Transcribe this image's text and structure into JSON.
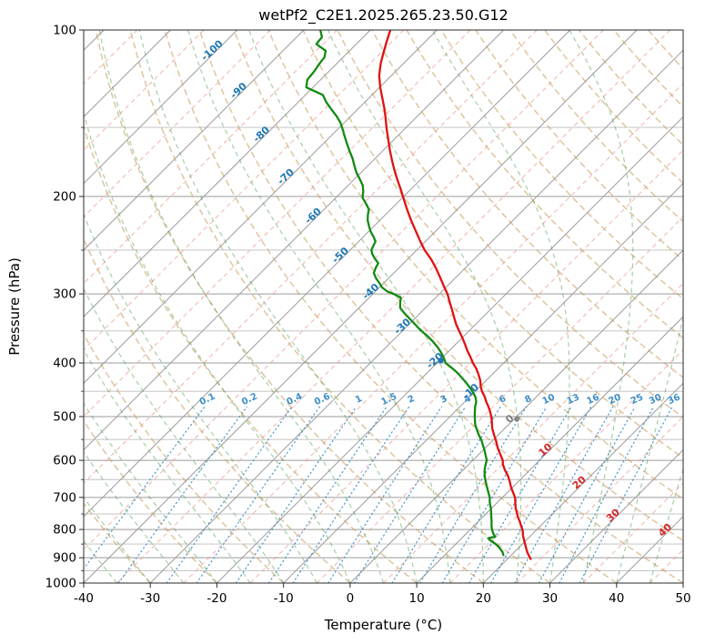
{
  "title": "wetPf2_C2E1.2025.265.23.50.G12",
  "axes": {
    "x_label": "Temperature (°C)",
    "y_label": "Pressure (hPa)",
    "x_ticks": [
      -40,
      -30,
      -20,
      -10,
      0,
      10,
      20,
      30,
      40,
      50
    ],
    "y_ticks": [
      100,
      200,
      300,
      400,
      500,
      600,
      700,
      800,
      900,
      1000
    ],
    "x_range": [
      -40,
      50
    ],
    "p_range": [
      100,
      1000
    ]
  },
  "chart_data": {
    "type": "line",
    "subtype": "skew_t_log_p",
    "title": "wetPf2_C2E1.2025.265.23.50.G12",
    "xlabel": "Temperature (°C)",
    "ylabel": "Pressure (hPa)",
    "skew_deg": 45,
    "grid": true,
    "colors": {
      "isotherm_major": "#9b9b9b",
      "isotherm_minor": "#ef9f96",
      "pressure_major": "#9b9b9b",
      "pressure_minor": "#bdbdbd",
      "dry_adiabat": "#c49a5a",
      "moist_adiabat": "#4e9e4e",
      "mixing_ratio": "#3c8ec8",
      "temperature": "#e11010",
      "dewpoint": "#128a12",
      "frame": "#2a2a2a",
      "label_negative": "#1f77b4",
      "label_zero": "#7f7f7f",
      "label_positive": "#d62728"
    },
    "isotherms_major": {
      "start": -120,
      "end": 50,
      "step": 10
    },
    "isotherms_minor": {
      "start": -115,
      "end": 45,
      "step": 10
    },
    "dry_adiabats": {
      "start": -40,
      "end": 190,
      "step": 10
    },
    "moist_adiabats": {
      "start": -40,
      "end": 45,
      "step": 5
    },
    "mixing_ratios": {
      "values": [
        0.1,
        0.2,
        0.4,
        0.6,
        1,
        1.5,
        2,
        3,
        4,
        6,
        8,
        10,
        13,
        16,
        20,
        25,
        30,
        36
      ],
      "label_pressure": 470,
      "top_pressure": 480
    },
    "isotherm_labels": [
      {
        "t": -100,
        "p": 110
      },
      {
        "t": -90,
        "p": 130
      },
      {
        "t": -80,
        "p": 156
      },
      {
        "t": -70,
        "p": 186
      },
      {
        "t": -60,
        "p": 219
      },
      {
        "t": -50,
        "p": 258
      },
      {
        "t": -40,
        "p": 300
      },
      {
        "t": -30,
        "p": 347
      },
      {
        "t": -20,
        "p": 400
      },
      {
        "t": -10,
        "p": 455
      },
      {
        "t": 0,
        "p": 510
      },
      {
        "t": 10,
        "p": 580
      },
      {
        "t": 20,
        "p": 665
      },
      {
        "t": 30,
        "p": 762
      },
      {
        "t": 40,
        "p": 810
      }
    ],
    "markers": [
      {
        "p": 396,
        "t": -19.8,
        "color": "#1f77b4",
        "r": 3.2
      },
      {
        "p": 505,
        "t": 0.4,
        "color": "#8a8a8a",
        "r": 3.0
      }
    ],
    "series": [
      {
        "name": "temperature",
        "units": {
          "p": "hPa",
          "t": "degC"
        },
        "points": [
          [
            905,
            23.5
          ],
          [
            895,
            22.9
          ],
          [
            880,
            22.0
          ],
          [
            865,
            21.2
          ],
          [
            850,
            20.4
          ],
          [
            835,
            19.6
          ],
          [
            820,
            18.8
          ],
          [
            805,
            18.1
          ],
          [
            790,
            17.2
          ],
          [
            775,
            16.3
          ],
          [
            760,
            15.3
          ],
          [
            745,
            14.4
          ],
          [
            730,
            13.5
          ],
          [
            715,
            12.7
          ],
          [
            700,
            11.9
          ],
          [
            685,
            10.8
          ],
          [
            670,
            9.7
          ],
          [
            655,
            8.7
          ],
          [
            640,
            7.6
          ],
          [
            625,
            6.3
          ],
          [
            610,
            5.1
          ],
          [
            600,
            4.5
          ],
          [
            585,
            3.2
          ],
          [
            570,
            1.9
          ],
          [
            555,
            0.7
          ],
          [
            540,
            -0.6
          ],
          [
            525,
            -1.9
          ],
          [
            510,
            -3.0
          ],
          [
            500,
            -3.8
          ],
          [
            490,
            -4.7
          ],
          [
            480,
            -5.7
          ],
          [
            470,
            -6.8
          ],
          [
            460,
            -7.8
          ],
          [
            450,
            -9.0
          ],
          [
            440,
            -10.0
          ],
          [
            430,
            -10.9
          ],
          [
            420,
            -12.0
          ],
          [
            410,
            -13.2
          ],
          [
            400,
            -14.6
          ],
          [
            390,
            -15.9
          ],
          [
            380,
            -17.3
          ],
          [
            370,
            -18.6
          ],
          [
            360,
            -20.0
          ],
          [
            350,
            -21.5
          ],
          [
            340,
            -23.0
          ],
          [
            330,
            -24.4
          ],
          [
            320,
            -25.8
          ],
          [
            310,
            -27.3
          ],
          [
            300,
            -28.8
          ],
          [
            290,
            -30.6
          ],
          [
            280,
            -32.4
          ],
          [
            270,
            -34.3
          ],
          [
            260,
            -36.4
          ],
          [
            250,
            -38.8
          ],
          [
            240,
            -41.0
          ],
          [
            230,
            -43.2
          ],
          [
            220,
            -45.5
          ],
          [
            210,
            -47.8
          ],
          [
            200,
            -50.1
          ],
          [
            193,
            -51.8
          ],
          [
            186,
            -53.6
          ],
          [
            179,
            -55.4
          ],
          [
            172,
            -57.2
          ],
          [
            165,
            -59.0
          ],
          [
            158,
            -60.8
          ],
          [
            151,
            -62.7
          ],
          [
            145,
            -64.3
          ],
          [
            139,
            -66.0
          ],
          [
            133,
            -67.9
          ],
          [
            127,
            -69.9
          ],
          [
            121,
            -71.8
          ],
          [
            115,
            -73.4
          ],
          [
            110,
            -74.6
          ],
          [
            105,
            -75.8
          ],
          [
            100,
            -77.0
          ]
        ]
      },
      {
        "name": "dewpoint",
        "units": {
          "p": "hPa",
          "t": "degC"
        },
        "points": [
          [
            890,
            18.8
          ],
          [
            880,
            18.3
          ],
          [
            870,
            17.6
          ],
          [
            858,
            16.7
          ],
          [
            848,
            15.8
          ],
          [
            838,
            14.7
          ],
          [
            830,
            14.0
          ],
          [
            824,
            14.8
          ],
          [
            816,
            14.2
          ],
          [
            806,
            13.6
          ],
          [
            797,
            13.1
          ],
          [
            785,
            12.5
          ],
          [
            772,
            11.9
          ],
          [
            760,
            11.3
          ],
          [
            748,
            10.7
          ],
          [
            736,
            10.1
          ],
          [
            724,
            9.4
          ],
          [
            712,
            8.7
          ],
          [
            700,
            8.1
          ],
          [
            688,
            7.3
          ],
          [
            676,
            6.5
          ],
          [
            664,
            5.7
          ],
          [
            652,
            4.9
          ],
          [
            640,
            4.1
          ],
          [
            628,
            3.4
          ],
          [
            616,
            2.8
          ],
          [
            605,
            2.3
          ],
          [
            600,
            2.1
          ],
          [
            588,
            1.2
          ],
          [
            576,
            0.3
          ],
          [
            564,
            -0.7
          ],
          [
            552,
            -1.7
          ],
          [
            540,
            -2.9
          ],
          [
            528,
            -4.0
          ],
          [
            516,
            -5.1
          ],
          [
            505,
            -5.9
          ],
          [
            500,
            -6.3
          ],
          [
            490,
            -7.0
          ],
          [
            480,
            -7.7
          ],
          [
            470,
            -8.3
          ],
          [
            461,
            -9.1
          ],
          [
            452,
            -10.2
          ],
          [
            443,
            -11.4
          ],
          [
            434,
            -12.7
          ],
          [
            425,
            -14.1
          ],
          [
            416,
            -15.6
          ],
          [
            408,
            -17.1
          ],
          [
            400,
            -18.7
          ],
          [
            392,
            -19.7
          ],
          [
            384,
            -20.8
          ],
          [
            375,
            -22.2
          ],
          [
            366,
            -23.8
          ],
          [
            357,
            -25.6
          ],
          [
            349,
            -27.4
          ],
          [
            341,
            -29.0
          ],
          [
            333,
            -30.7
          ],
          [
            325,
            -32.4
          ],
          [
            318,
            -33.8
          ],
          [
            311,
            -34.6
          ],
          [
            305,
            -35.2
          ],
          [
            301,
            -36.5
          ],
          [
            297,
            -38.2
          ],
          [
            292,
            -39.6
          ],
          [
            287,
            -40.6
          ],
          [
            281,
            -41.9
          ],
          [
            275,
            -43.0
          ],
          [
            269,
            -43.5
          ],
          [
            264,
            -43.8
          ],
          [
            259,
            -45.0
          ],
          [
            254,
            -46.1
          ],
          [
            250,
            -46.8
          ],
          [
            245,
            -47.2
          ],
          [
            241,
            -47.5
          ],
          [
            236,
            -48.6
          ],
          [
            231,
            -49.8
          ],
          [
            226,
            -50.8
          ],
          [
            221,
            -51.8
          ],
          [
            216,
            -52.6
          ],
          [
            211,
            -53.3
          ],
          [
            206,
            -54.6
          ],
          [
            201,
            -56.0
          ],
          [
            196,
            -56.8
          ],
          [
            191,
            -57.8
          ],
          [
            186,
            -59.2
          ],
          [
            181,
            -60.7
          ],
          [
            176,
            -62.0
          ],
          [
            171,
            -63.3
          ],
          [
            166,
            -64.8
          ],
          [
            161,
            -66.3
          ],
          [
            156,
            -67.8
          ],
          [
            151,
            -69.3
          ],
          [
            147,
            -70.6
          ],
          [
            143,
            -72.2
          ],
          [
            139,
            -74.0
          ],
          [
            135,
            -75.8
          ],
          [
            131,
            -77.4
          ],
          [
            127,
            -81.0
          ],
          [
            123,
            -82.0
          ],
          [
            119,
            -82.2
          ],
          [
            115,
            -82.6
          ],
          [
            112,
            -82.8
          ],
          [
            109,
            -83.6
          ],
          [
            106,
            -86.0
          ],
          [
            103,
            -86.2
          ],
          [
            100,
            -87.5
          ]
        ]
      }
    ]
  }
}
